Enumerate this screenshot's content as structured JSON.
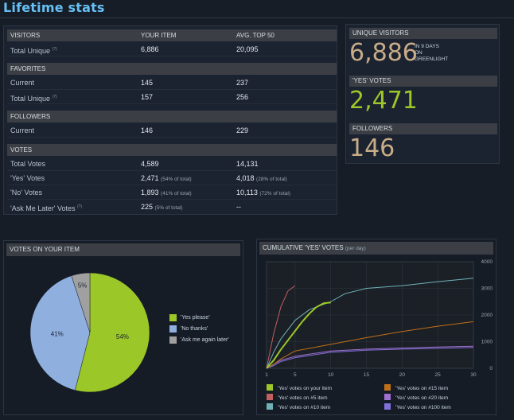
{
  "page_title": "Lifetime stats",
  "stats": {
    "col_headers": [
      "VISITORS",
      "YOUR ITEM",
      "AVG. TOP 50"
    ],
    "q": "(?)",
    "visitors": [
      {
        "label": "Total Unique",
        "yours": "6,886",
        "avg": "20,095"
      }
    ],
    "favorites_header": "FAVORITES",
    "favorites": [
      {
        "label": "Current",
        "yours": "145",
        "avg": "237"
      },
      {
        "label": "Total Unique",
        "yours": "157",
        "avg": "256"
      }
    ],
    "followers_header": "FOLLOWERS",
    "followers": [
      {
        "label": "Current",
        "yours": "146",
        "avg": "229"
      }
    ],
    "votes_header": "VOTES",
    "votes": [
      {
        "label": "Total Votes",
        "yours": "4,589",
        "yours_note": "",
        "avg": "14,131",
        "avg_note": ""
      },
      {
        "label": "'Yes' Votes",
        "yours": "2,471",
        "yours_note": "(54% of total)",
        "avg": "4,018",
        "avg_note": "(28% of total)"
      },
      {
        "label": "'No' Votes",
        "yours": "1,893",
        "yours_note": "(41% of total)",
        "avg": "10,113",
        "avg_note": "(72% of total)"
      },
      {
        "label": "'Ask Me Later' Votes",
        "yours": "225",
        "yours_note": "(5% of total)",
        "avg": "--",
        "avg_note": ""
      }
    ]
  },
  "summary": {
    "visitors_label": "UNIQUE VISITORS",
    "visitors_value": "6,886",
    "days_note_1": "IN 9 DAYS",
    "days_note_2": "ON",
    "days_note_3": "GREENLIGHT",
    "yes_label": "'YES' VOTES",
    "yes_value": "2,471",
    "followers_label": "FOLLOWERS",
    "followers_value": "146"
  },
  "colors": {
    "green": "#9cc728",
    "blue": "#8fb0df",
    "gray": "#a0a0a0",
    "orange": "#c0701a",
    "red": "#c06060",
    "teal": "#6fb3b8",
    "purple": "#a070d0",
    "indigo": "#8070d8"
  },
  "chart_data": [
    {
      "type": "pie",
      "title": "VOTES ON YOUR ITEM",
      "slices": [
        {
          "name": "'Yes please'",
          "value": 54,
          "label": "54%",
          "color": "#9cc728"
        },
        {
          "name": "'No thanks'",
          "value": 41,
          "label": "41%",
          "color": "#8fb0df"
        },
        {
          "name": "'Ask me again later'",
          "value": 5,
          "label": "5%",
          "color": "#a0a0a0"
        }
      ]
    },
    {
      "type": "line",
      "title": "CUMULATIVE 'YES' VOTES",
      "title_note": "(per day)",
      "x_ticks": [
        1,
        5,
        10,
        15,
        20,
        25,
        30
      ],
      "y_ticks": [
        0,
        1000,
        2000,
        3000,
        4000
      ],
      "xlim": [
        1,
        30
      ],
      "ylim": [
        0,
        4000
      ],
      "grid": true,
      "series": [
        {
          "name": "'Yes' votes on your item",
          "color": "#9cc728",
          "x": [
            1,
            2,
            3,
            4,
            5,
            6,
            7,
            8,
            9,
            10
          ],
          "y": [
            0,
            300,
            700,
            1050,
            1400,
            1750,
            2050,
            2300,
            2440,
            2471
          ]
        },
        {
          "name": "'Yes' votes on #5 item",
          "color": "#c06060",
          "x": [
            1,
            2,
            3,
            4,
            5
          ],
          "y": [
            0,
            1300,
            2300,
            2900,
            3100
          ]
        },
        {
          "name": "'Yes' votes on #10 item",
          "color": "#6fb3b8",
          "x": [
            1,
            2,
            3,
            5,
            7,
            10,
            12,
            15,
            20,
            25,
            30
          ],
          "y": [
            0,
            600,
            1100,
            1800,
            2200,
            2500,
            2800,
            3000,
            3100,
            3250,
            3380
          ]
        },
        {
          "name": "'Yes' votes on #15 item",
          "color": "#c0701a",
          "x": [
            1,
            2,
            3,
            5,
            10,
            15,
            20,
            25,
            30
          ],
          "y": [
            0,
            150,
            350,
            650,
            900,
            1150,
            1380,
            1580,
            1750
          ]
        },
        {
          "name": "'Yes' votes on #20 item",
          "color": "#a070d0",
          "x": [
            1,
            2,
            3,
            5,
            10,
            15,
            20,
            25,
            30
          ],
          "y": [
            0,
            150,
            300,
            450,
            650,
            720,
            760,
            800,
            830
          ]
        },
        {
          "name": "'Yes' votes on #100 item",
          "color": "#8070d8",
          "x": [
            1,
            2,
            3,
            5,
            10,
            15,
            20,
            25,
            30
          ],
          "y": [
            0,
            100,
            250,
            400,
            600,
            680,
            720,
            750,
            780
          ]
        }
      ]
    }
  ]
}
